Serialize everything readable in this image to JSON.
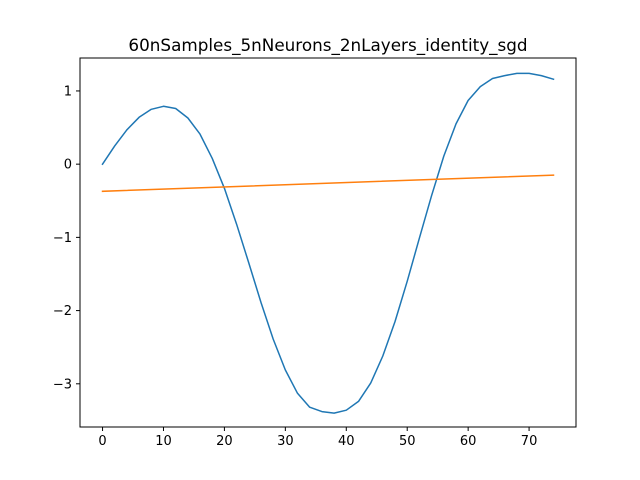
{
  "chart_data": {
    "type": "line",
    "title": "60nSamples_5nNeurons_2nLayers_identity_sgd",
    "xlabel": "",
    "ylabel": "",
    "xlim": [
      -3.7,
      77.7
    ],
    "ylim": [
      -3.59,
      1.45
    ],
    "xticks": [
      0,
      10,
      20,
      30,
      40,
      50,
      60,
      70
    ],
    "yticks": [
      -3,
      -2,
      -1,
      0,
      1
    ],
    "grid": false,
    "series": [
      {
        "color": "#1f77b4",
        "x": [
          0,
          2,
          4,
          6,
          8,
          10,
          12,
          14,
          16,
          18,
          20,
          22,
          24,
          26,
          28,
          30,
          32,
          34,
          36,
          38,
          40,
          42,
          44,
          46,
          48,
          50,
          52,
          54,
          56,
          58,
          60,
          62,
          64,
          66,
          68,
          70,
          72,
          74
        ],
        "y": [
          0.0,
          0.25,
          0.47,
          0.64,
          0.75,
          0.79,
          0.76,
          0.63,
          0.41,
          0.08,
          -0.33,
          -0.82,
          -1.35,
          -1.89,
          -2.39,
          -2.81,
          -3.13,
          -3.32,
          -3.38,
          -3.4,
          -3.36,
          -3.24,
          -2.99,
          -2.62,
          -2.15,
          -1.6,
          -1.01,
          -0.43,
          0.11,
          0.55,
          0.87,
          1.06,
          1.17,
          1.21,
          1.24,
          1.24,
          1.21,
          1.16
        ]
      },
      {
        "color": "#ff7f0e",
        "x": [
          0,
          74
        ],
        "y": [
          -0.37,
          -0.15
        ]
      }
    ]
  }
}
